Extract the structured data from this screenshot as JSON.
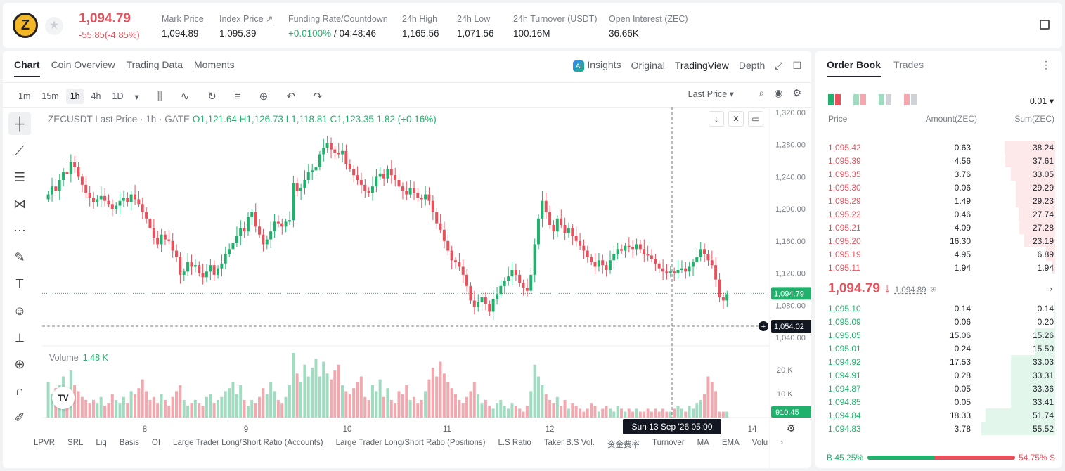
{
  "header": {
    "coin_logo_letter": "Z",
    "last_price": "1,094.79",
    "change": "-55.85(-4.85%)",
    "stats": [
      {
        "label": "Mark Price",
        "value": "1,094.89"
      },
      {
        "label": "Index Price ↗",
        "value": "1,095.39"
      },
      {
        "label": "Funding Rate/Countdown",
        "value": "+0.0100%",
        "value2": "/ 04:48:46"
      },
      {
        "label": "24h High",
        "value": "1,165.56"
      },
      {
        "label": "24h Low",
        "value": "1,071.56"
      },
      {
        "label": "24h Turnover (USDT)",
        "value": "100.16M"
      },
      {
        "label": "Open Interest (ZEC)",
        "value": "36.66K"
      }
    ]
  },
  "chart_tabs": [
    "Chart",
    "Coin Overview",
    "Trading Data",
    "Moments"
  ],
  "view_tabs": [
    "Insights",
    "Original",
    "TradingView",
    "Depth"
  ],
  "timeframes": [
    "1m",
    "15m",
    "1h",
    "4h",
    "1D"
  ],
  "last_price_select": "Last Price",
  "legend": {
    "symbol": "ZECUSDT Last Price · 1h · GATE",
    "o": "O1,121.64",
    "h": "H1,126.73",
    "l": "L1,118.81",
    "c": "C1,123.35",
    "chg": "1.82 (+0.16%)"
  },
  "volume_label": "Volume",
  "volume_value": "1.48 K",
  "bottom_indicators": [
    "LPVR",
    "SRL",
    "Liq",
    "Basis",
    "OI",
    "Large Trader Long/Short Ratio (Accounts)",
    "Large Trader Long/Short Ratio (Positions)",
    "L.S Ratio",
    "Taker B.S Vol.",
    "资金费率",
    "Turnover",
    "MA",
    "EMA",
    "Volu"
  ],
  "crosshair": {
    "date_label": "Sun 13 Sep '26   05:00",
    "price_label": "1,054.02"
  },
  "last_price_label": "1,094.79",
  "volume_price_label": "910.45",
  "colors": {
    "up": "#20b26c",
    "down": "#e8505b",
    "up_light": "#9fdcc0",
    "down_light": "#f2a8ae"
  },
  "chart_data": {
    "type": "candlestick",
    "ylim": [
      1040,
      1320
    ],
    "y_ticks": [
      "1,320.00",
      "1,280.00",
      "1,240.00",
      "1,200.00",
      "1,160.00",
      "1,120.00",
      "1,080.00",
      "1,040.00"
    ],
    "x_ticks": [
      "8",
      "9",
      "10",
      "11",
      "12",
      "14"
    ],
    "volume_ticks": [
      "20 K",
      "10 K"
    ],
    "close_series": [
      1218,
      1228,
      1222,
      1236,
      1246,
      1243,
      1258,
      1252,
      1240,
      1230,
      1220,
      1214,
      1208,
      1212,
      1216,
      1210,
      1206,
      1200,
      1204,
      1210,
      1214,
      1208,
      1218,
      1212,
      1206,
      1196,
      1188,
      1176,
      1164,
      1156,
      1168,
      1162,
      1160,
      1148,
      1140,
      1118,
      1122,
      1134,
      1128,
      1130,
      1120,
      1115,
      1122,
      1130,
      1118,
      1126,
      1132,
      1144,
      1150,
      1158,
      1166,
      1176,
      1172,
      1190,
      1196,
      1178,
      1168,
      1156,
      1162,
      1172,
      1184,
      1182,
      1178,
      1184,
      1186,
      1232,
      1222,
      1226,
      1236,
      1246,
      1248,
      1252,
      1268,
      1276,
      1282,
      1274,
      1270,
      1268,
      1272,
      1256,
      1250,
      1242,
      1236,
      1230,
      1222,
      1220,
      1228,
      1240,
      1244,
      1238,
      1250,
      1242,
      1236,
      1228,
      1222,
      1218,
      1226,
      1220,
      1214,
      1212,
      1218,
      1210,
      1196,
      1182,
      1174,
      1160,
      1148,
      1136,
      1134,
      1128,
      1118,
      1104,
      1086,
      1078,
      1084,
      1090,
      1082,
      1072,
      1088,
      1094,
      1104,
      1110,
      1116,
      1124,
      1118,
      1108,
      1102,
      1098,
      1118,
      1156,
      1188,
      1210,
      1196,
      1180,
      1172,
      1188,
      1180,
      1170,
      1176,
      1166,
      1160,
      1154,
      1148,
      1140,
      1134,
      1128,
      1136,
      1130,
      1124,
      1136,
      1144,
      1150,
      1148,
      1154,
      1152,
      1150,
      1156,
      1150,
      1144,
      1142,
      1138,
      1132,
      1126,
      1122,
      1120,
      1122,
      1120,
      1124,
      1126,
      1122,
      1128,
      1134,
      1140,
      1150,
      1144,
      1136,
      1130,
      1112,
      1090,
      1086,
      1094
    ],
    "volume_series": [
      12,
      8,
      10,
      11,
      14,
      9,
      16,
      11,
      9,
      7,
      6,
      5,
      6,
      5,
      7,
      4,
      5,
      8,
      6,
      5,
      7,
      5,
      9,
      8,
      10,
      13,
      9,
      6,
      7,
      5,
      8,
      6,
      4,
      7,
      9,
      11,
      6,
      4,
      5,
      6,
      5,
      4,
      7,
      8,
      5,
      6,
      7,
      9,
      10,
      12,
      8,
      11,
      6,
      4,
      6,
      5,
      7,
      10,
      8,
      12,
      9,
      6,
      5,
      7,
      11,
      22,
      15,
      12,
      18,
      14,
      17,
      20,
      14,
      19,
      15,
      13,
      16,
      18,
      11,
      9,
      8,
      10,
      12,
      14,
      7,
      6,
      11,
      9,
      13,
      7,
      10,
      6,
      5,
      9,
      8,
      11,
      6,
      7,
      5,
      6,
      9,
      13,
      17,
      14,
      19,
      15,
      12,
      10,
      8,
      6,
      5,
      7,
      9,
      12,
      8,
      5,
      6,
      4,
      3,
      5,
      6,
      4,
      3,
      5,
      4,
      3,
      2,
      4,
      9,
      18,
      14,
      11,
      8,
      6,
      5,
      7,
      4,
      6,
      3,
      5,
      4,
      3,
      2,
      3,
      5,
      4,
      2,
      3,
      4,
      3,
      2,
      4,
      3,
      2,
      3,
      2,
      3,
      2,
      2,
      3,
      2,
      3,
      2,
      3,
      2,
      2,
      3,
      4,
      3,
      2,
      4,
      3,
      5,
      6,
      8,
      14,
      12,
      9
    ]
  },
  "orderbook": {
    "tabs": [
      "Order Book",
      "Trades"
    ],
    "precision": "0.01",
    "columns": [
      "Price",
      "Amount(ZEC)",
      "Sum(ZEC)"
    ],
    "asks": [
      {
        "price": "1,095.42",
        "amount": "0.63",
        "sum": "38.24",
        "depth": 0.69
      },
      {
        "price": "1,095.39",
        "amount": "4.56",
        "sum": "37.61",
        "depth": 0.68
      },
      {
        "price": "1,095.35",
        "amount": "3.76",
        "sum": "33.05",
        "depth": 0.6
      },
      {
        "price": "1,095.30",
        "amount": "0.06",
        "sum": "29.29",
        "depth": 0.53
      },
      {
        "price": "1,095.29",
        "amount": "1.49",
        "sum": "29.23",
        "depth": 0.53
      },
      {
        "price": "1,095.22",
        "amount": "0.46",
        "sum": "27.74",
        "depth": 0.5
      },
      {
        "price": "1,095.21",
        "amount": "4.09",
        "sum": "27.28",
        "depth": 0.49
      },
      {
        "price": "1,095.20",
        "amount": "16.30",
        "sum": "23.19",
        "depth": 0.42
      },
      {
        "price": "1,095.19",
        "amount": "4.95",
        "sum": "6.89",
        "depth": 0.12
      },
      {
        "price": "1,095.11",
        "amount": "1.94",
        "sum": "1.94",
        "depth": 0.04
      }
    ],
    "mid_price": "1,094.79 ↓",
    "mid_mark": "1,094.89",
    "bids": [
      {
        "price": "1,095.10",
        "amount": "0.14",
        "sum": "0.14",
        "depth": 0.01
      },
      {
        "price": "1,095.09",
        "amount": "0.06",
        "sum": "0.20",
        "depth": 0.01
      },
      {
        "price": "1,095.05",
        "amount": "15.06",
        "sum": "15.26",
        "depth": 0.28
      },
      {
        "price": "1,095.01",
        "amount": "0.24",
        "sum": "15.50",
        "depth": 0.28
      },
      {
        "price": "1,094.92",
        "amount": "17.53",
        "sum": "33.03",
        "depth": 0.6
      },
      {
        "price": "1,094.91",
        "amount": "0.28",
        "sum": "33.31",
        "depth": 0.6
      },
      {
        "price": "1,094.87",
        "amount": "0.05",
        "sum": "33.36",
        "depth": 0.6
      },
      {
        "price": "1,094.85",
        "amount": "0.05",
        "sum": "33.41",
        "depth": 0.6
      },
      {
        "price": "1,094.84",
        "amount": "18.33",
        "sum": "51.74",
        "depth": 0.94
      },
      {
        "price": "1,094.83",
        "amount": "3.78",
        "sum": "55.52",
        "depth": 1.0
      }
    ],
    "buy_ratio": "B 45.25%",
    "sell_ratio": "54.75% S",
    "buy_fraction": 0.4525
  }
}
